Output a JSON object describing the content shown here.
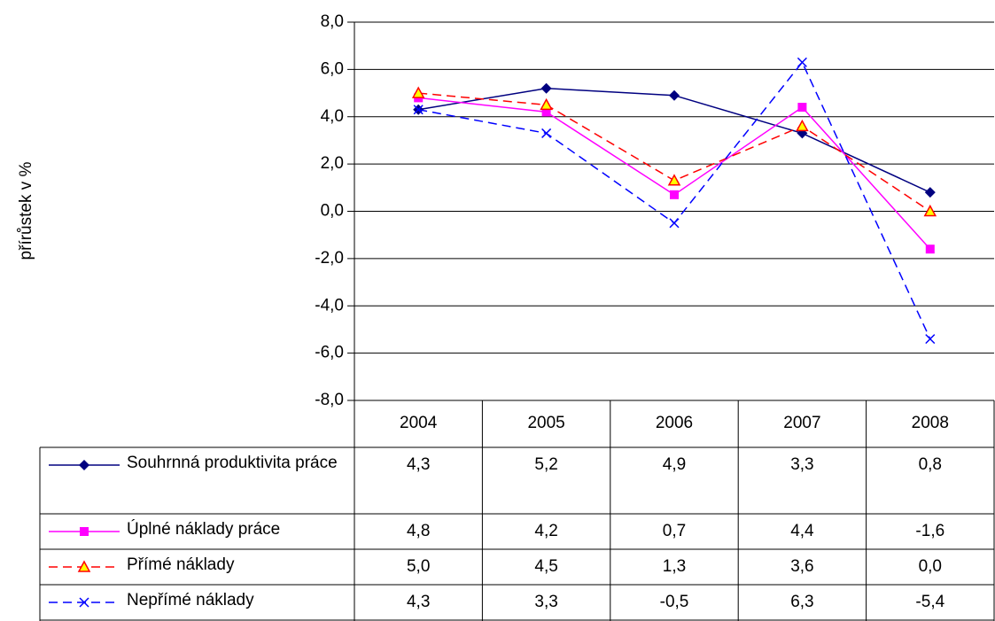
{
  "chart_data": {
    "type": "line",
    "y_label": "přírůstek v %",
    "categories": [
      "2004",
      "2005",
      "2006",
      "2007",
      "2008"
    ],
    "ylim": [
      -8,
      8
    ],
    "yticks": [
      {
        "value": -8,
        "label": "-8,0"
      },
      {
        "value": -6,
        "label": "-6,0"
      },
      {
        "value": -4,
        "label": "-4,0"
      },
      {
        "value": -2,
        "label": "-2,0"
      },
      {
        "value": 0,
        "label": "0,0"
      },
      {
        "value": 2,
        "label": "2,0"
      },
      {
        "value": 4,
        "label": "4,0"
      },
      {
        "value": 6,
        "label": "6,0"
      },
      {
        "value": 8,
        "label": "8,0"
      }
    ],
    "grid": true,
    "series": [
      {
        "name": "Souhrnná produktivita práce",
        "color": "#000080",
        "marker": "diamond",
        "dashed": false,
        "values": [
          4.3,
          5.2,
          4.9,
          3.3,
          0.8
        ],
        "value_labels": [
          "4,3",
          "5,2",
          "4,9",
          "3,3",
          "0,8"
        ]
      },
      {
        "name": "Úplné náklady práce",
        "color": "#ff00ff",
        "marker": "square",
        "dashed": false,
        "values": [
          4.8,
          4.2,
          0.7,
          4.4,
          -1.6
        ],
        "value_labels": [
          "4,8",
          "4,2",
          "0,7",
          "4,4",
          "-1,6"
        ]
      },
      {
        "name": "Přímé náklady",
        "color": "#ff0000",
        "marker": "triangle",
        "dashed": true,
        "values": [
          5.0,
          4.5,
          1.3,
          3.6,
          0.0
        ],
        "value_labels": [
          "5,0",
          "4,5",
          "1,3",
          "3,6",
          "0,0"
        ]
      },
      {
        "name": "Nepřímé náklady",
        "color": "#0000ff",
        "marker": "x",
        "dashed": true,
        "values": [
          4.3,
          3.3,
          -0.5,
          6.3,
          -5.4
        ],
        "value_labels": [
          "4,3",
          "3,3",
          "-0,5",
          "6,3",
          "-5,4"
        ]
      }
    ]
  }
}
